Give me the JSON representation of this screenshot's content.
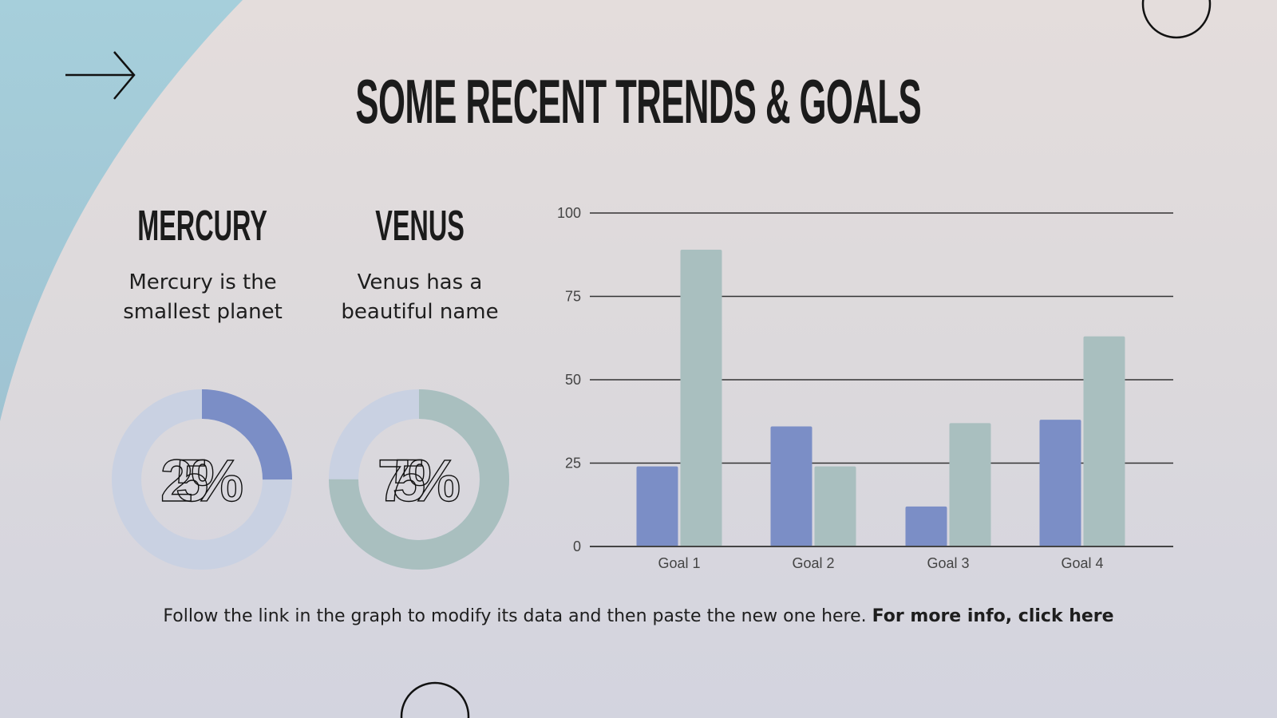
{
  "title": "SOME RECENT TRENDS & GOALS",
  "columns": [
    {
      "heading": "MERCURY",
      "description_line1": "Mercury is the",
      "description_line2": "smallest planet",
      "percent_label": "25%",
      "percent": 25,
      "color": "#7b8ec6"
    },
    {
      "heading": "VENUS",
      "description_line1": "Venus has a",
      "description_line2": "beautiful name",
      "percent_label": "75%",
      "percent": 75,
      "color": "#a9bfbf"
    }
  ],
  "donut_track_color": "#c9d1e2",
  "chart_data": {
    "type": "bar",
    "categories": [
      "Goal 1",
      "Goal 2",
      "Goal 3",
      "Goal 4"
    ],
    "series": [
      {
        "values": [
          24,
          36,
          12,
          38
        ],
        "color": "#7b8ec6"
      },
      {
        "values": [
          89,
          24,
          37,
          63
        ],
        "color": "#a9bfbf"
      }
    ],
    "yticks": [
      0,
      25,
      50,
      75,
      100
    ],
    "ylim": [
      0,
      100
    ],
    "grid": true,
    "xlabel": "",
    "ylabel": "",
    "title": ""
  },
  "footer": {
    "text": "Follow the link in the graph to modify its data and then paste the new one here. ",
    "link": "For more info, click here"
  },
  "decor": {
    "accent_shape_color": "#a5cdd9",
    "arrow_icon": "arrow-right"
  }
}
